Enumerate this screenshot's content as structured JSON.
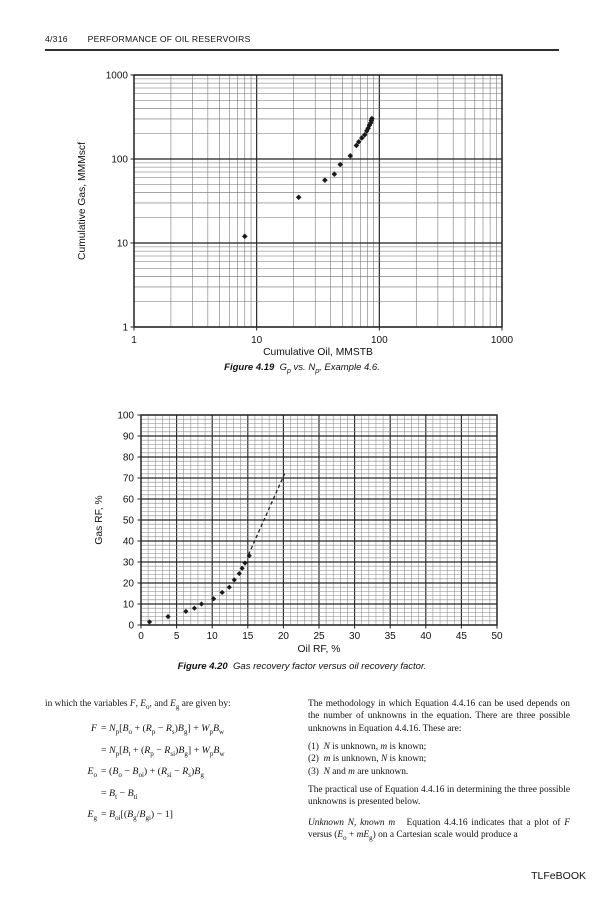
{
  "page": {
    "page_number": "4/316",
    "running_title": "PERFORMANCE OF OIL RESERVOIRS",
    "footer_watermark": "TLFeBOOK"
  },
  "figures": {
    "fig1_caption": [
      {
        "t": "Figure 4.19",
        "b": 1,
        "i": 1
      },
      {
        "t": "  "
      },
      {
        "t": "G",
        "i": 1
      },
      {
        "t": "p",
        "sub": 1,
        "i": 1
      },
      {
        "t": " vs. ",
        "i": 1
      },
      {
        "t": "N",
        "i": 1
      },
      {
        "t": "p",
        "sub": 1,
        "i": 1
      },
      {
        "t": ", Example 4.6.",
        "i": 1
      }
    ],
    "fig2_caption": [
      {
        "t": "Figure 4.20",
        "b": 1,
        "i": 1
      },
      {
        "t": "  "
      },
      {
        "t": "Gas recovery factor versus oil recovery factor.",
        "i": 1
      }
    ]
  },
  "chart_data": [
    {
      "id": "figure-4-19",
      "type": "scatter",
      "title": "Gp vs. Np, Example 4.6",
      "xlabel": "Cumulative Oil, MMSTB",
      "ylabel": "Cumulative Gas, MMMscf",
      "xscale": "log",
      "yscale": "log",
      "xlim": [
        1,
        1000
      ],
      "ylim": [
        1,
        1000
      ],
      "x_ticks": [
        "1",
        "10",
        "100",
        "1000"
      ],
      "y_ticks": [
        "1",
        "10",
        "100",
        "1000"
      ],
      "grid": "log-minor-on",
      "legend": "none",
      "marker": "diamond",
      "marker_color": "#1a1a1a",
      "marker_size": 2.8,
      "grid_major_color": "#1f1f1f",
      "grid_minor_color": "#6f6f6f",
      "points": [
        [
          8,
          12
        ],
        [
          22,
          35
        ],
        [
          36,
          56
        ],
        [
          43,
          66
        ],
        [
          48,
          86
        ],
        [
          58,
          109
        ],
        [
          65,
          145
        ],
        [
          68,
          160
        ],
        [
          72,
          178
        ],
        [
          76,
          194
        ],
        [
          79,
          216
        ],
        [
          81,
          232
        ],
        [
          83,
          252
        ],
        [
          85,
          269
        ],
        [
          86,
          287
        ],
        [
          87,
          303
        ]
      ]
    },
    {
      "id": "figure-4-20",
      "type": "scatter",
      "title": "Gas recovery factor versus oil recovery factor",
      "xlabel": "Oil RF, %",
      "ylabel": "Gas RF, %",
      "xscale": "linear",
      "yscale": "linear",
      "xlim": [
        0,
        50
      ],
      "ylim": [
        0,
        100
      ],
      "x_tick_step": 5,
      "y_tick_step": 10,
      "x_minor_step": 1,
      "y_minor_step": 2,
      "x_ticks": [
        "0",
        "5",
        "10",
        "15",
        "20",
        "25",
        "30",
        "35",
        "40",
        "45",
        "50"
      ],
      "y_ticks": [
        "0",
        "10",
        "20",
        "30",
        "40",
        "50",
        "60",
        "70",
        "80",
        "90",
        "100"
      ],
      "grid": "minor-on",
      "legend": "none",
      "marker": "diamond",
      "marker_color": "#1a1a1a",
      "marker_size": 2.6,
      "grid_major_color": "#262626",
      "grid_minor_color": "#8a8a8a",
      "points": [
        [
          1.2,
          1.5
        ],
        [
          3.8,
          4
        ],
        [
          6.3,
          6.5
        ],
        [
          7.5,
          8
        ],
        [
          8.5,
          10
        ],
        [
          10.2,
          12.5
        ],
        [
          11.4,
          15.5
        ],
        [
          12.4,
          18
        ],
        [
          13.1,
          21.5
        ],
        [
          13.8,
          24.5
        ],
        [
          14.2,
          27
        ],
        [
          14.6,
          29.5
        ],
        [
          15.2,
          33
        ]
      ],
      "trend_dashed": {
        "from": [
          15.1,
          33.5
        ],
        "to": [
          20.3,
          73
        ]
      }
    }
  ],
  "text": {
    "intro": [
      {
        "t": "in which the variables "
      },
      {
        "t": "F",
        "i": 1
      },
      {
        "t": ", "
      },
      {
        "t": "E",
        "i": 1
      },
      {
        "t": "o",
        "sub": 1
      },
      {
        "t": ", and "
      },
      {
        "t": "E",
        "i": 1
      },
      {
        "t": "g",
        "sub": 1
      },
      {
        "t": " are given by:"
      }
    ],
    "equations": [
      {
        "lhs": [
          {
            "t": "F",
            "i": 1
          }
        ],
        "rhs": [
          {
            "t": "= "
          },
          {
            "t": "N",
            "i": 1
          },
          {
            "t": "p",
            "sub": 1
          },
          {
            "t": "["
          },
          {
            "t": "B",
            "i": 1
          },
          {
            "t": "o",
            "sub": 1
          },
          {
            "t": " + ("
          },
          {
            "t": "R",
            "i": 1
          },
          {
            "t": "p",
            "sub": 1
          },
          {
            "t": " − "
          },
          {
            "t": "R",
            "i": 1
          },
          {
            "t": "s",
            "sub": 1
          },
          {
            "t": ")"
          },
          {
            "t": "B",
            "i": 1
          },
          {
            "t": "g",
            "sub": 1
          },
          {
            "t": "] + "
          },
          {
            "t": "W",
            "i": 1
          },
          {
            "t": "p",
            "sub": 1
          },
          {
            "t": "B",
            "i": 1
          },
          {
            "t": "w",
            "sub": 1
          }
        ]
      },
      {
        "lhs": [],
        "rhs": [
          {
            "t": "= "
          },
          {
            "t": "N",
            "i": 1
          },
          {
            "t": "p",
            "sub": 1
          },
          {
            "t": "["
          },
          {
            "t": "B",
            "i": 1
          },
          {
            "t": "t",
            "sub": 1
          },
          {
            "t": " + ("
          },
          {
            "t": "R",
            "i": 1
          },
          {
            "t": "p",
            "sub": 1
          },
          {
            "t": " − "
          },
          {
            "t": "R",
            "i": 1
          },
          {
            "t": "si",
            "sub": 1
          },
          {
            "t": ")"
          },
          {
            "t": "B",
            "i": 1
          },
          {
            "t": "g",
            "sub": 1
          },
          {
            "t": "] + "
          },
          {
            "t": "W",
            "i": 1
          },
          {
            "t": "p",
            "sub": 1
          },
          {
            "t": "B",
            "i": 1
          },
          {
            "t": "w",
            "sub": 1
          }
        ]
      },
      {
        "lhs": [
          {
            "t": "E",
            "i": 1
          },
          {
            "t": "o",
            "sub": 1
          }
        ],
        "rhs": [
          {
            "t": "= ("
          },
          {
            "t": "B",
            "i": 1
          },
          {
            "t": "o",
            "sub": 1
          },
          {
            "t": " − "
          },
          {
            "t": "B",
            "i": 1
          },
          {
            "t": "oi",
            "sub": 1
          },
          {
            "t": ") + ("
          },
          {
            "t": "R",
            "i": 1
          },
          {
            "t": "si",
            "sub": 1
          },
          {
            "t": " − "
          },
          {
            "t": "R",
            "i": 1
          },
          {
            "t": "s",
            "sub": 1
          },
          {
            "t": ")"
          },
          {
            "t": "B",
            "i": 1
          },
          {
            "t": "g",
            "sub": 1
          }
        ]
      },
      {
        "lhs": [],
        "rhs": [
          {
            "t": "= "
          },
          {
            "t": "B",
            "i": 1
          },
          {
            "t": "t",
            "sub": 1
          },
          {
            "t": " − "
          },
          {
            "t": "B",
            "i": 1
          },
          {
            "t": "ti",
            "sub": 1
          }
        ]
      },
      {
        "lhs": [
          {
            "t": "E",
            "i": 1
          },
          {
            "t": "g",
            "sub": 1
          }
        ],
        "rhs": [
          {
            "t": "= "
          },
          {
            "t": "B",
            "i": 1
          },
          {
            "t": "oi",
            "sub": 1
          },
          {
            "t": "[("
          },
          {
            "t": "B",
            "i": 1
          },
          {
            "t": "g",
            "sub": 1
          },
          {
            "t": "/"
          },
          {
            "t": "B",
            "i": 1
          },
          {
            "t": "gi",
            "sub": 1
          },
          {
            "t": ") − 1]"
          }
        ]
      }
    ],
    "right": {
      "p1": "The methodology in which Equation 4.4.16 can be used depends on the number of unknowns in the equation. There are three possible unknowns in Equation 4.4.16. These are:",
      "items": [
        [
          {
            "t": "(1)  "
          },
          {
            "t": "N",
            "i": 1
          },
          {
            "t": " is unknown, "
          },
          {
            "t": "m",
            "i": 1
          },
          {
            "t": " is known;"
          }
        ],
        [
          {
            "t": "(2)  "
          },
          {
            "t": "m",
            "i": 1
          },
          {
            "t": " is unknown, "
          },
          {
            "t": "N",
            "i": 1
          },
          {
            "t": " is known;"
          }
        ],
        [
          {
            "t": "(3)  "
          },
          {
            "t": "N",
            "i": 1
          },
          {
            "t": " and "
          },
          {
            "t": "m",
            "i": 1
          },
          {
            "t": " are unknown."
          }
        ]
      ],
      "p2": "The practical use of Equation 4.4.16 in determining the three possible unknowns is presented below.",
      "p3": [
        {
          "t": "Unknown N, known m",
          "i": 1
        },
        {
          "t": "   Equation 4.4.16 indicates that a plot of "
        },
        {
          "t": "F",
          "i": 1
        },
        {
          "t": " versus ("
        },
        {
          "t": "E",
          "i": 1
        },
        {
          "t": "o",
          "sub": 1
        },
        {
          "t": " + "
        },
        {
          "t": "mE",
          "i": 1
        },
        {
          "t": "g",
          "sub": 1
        },
        {
          "t": ") on a Cartesian scale would produce a"
        }
      ]
    }
  }
}
